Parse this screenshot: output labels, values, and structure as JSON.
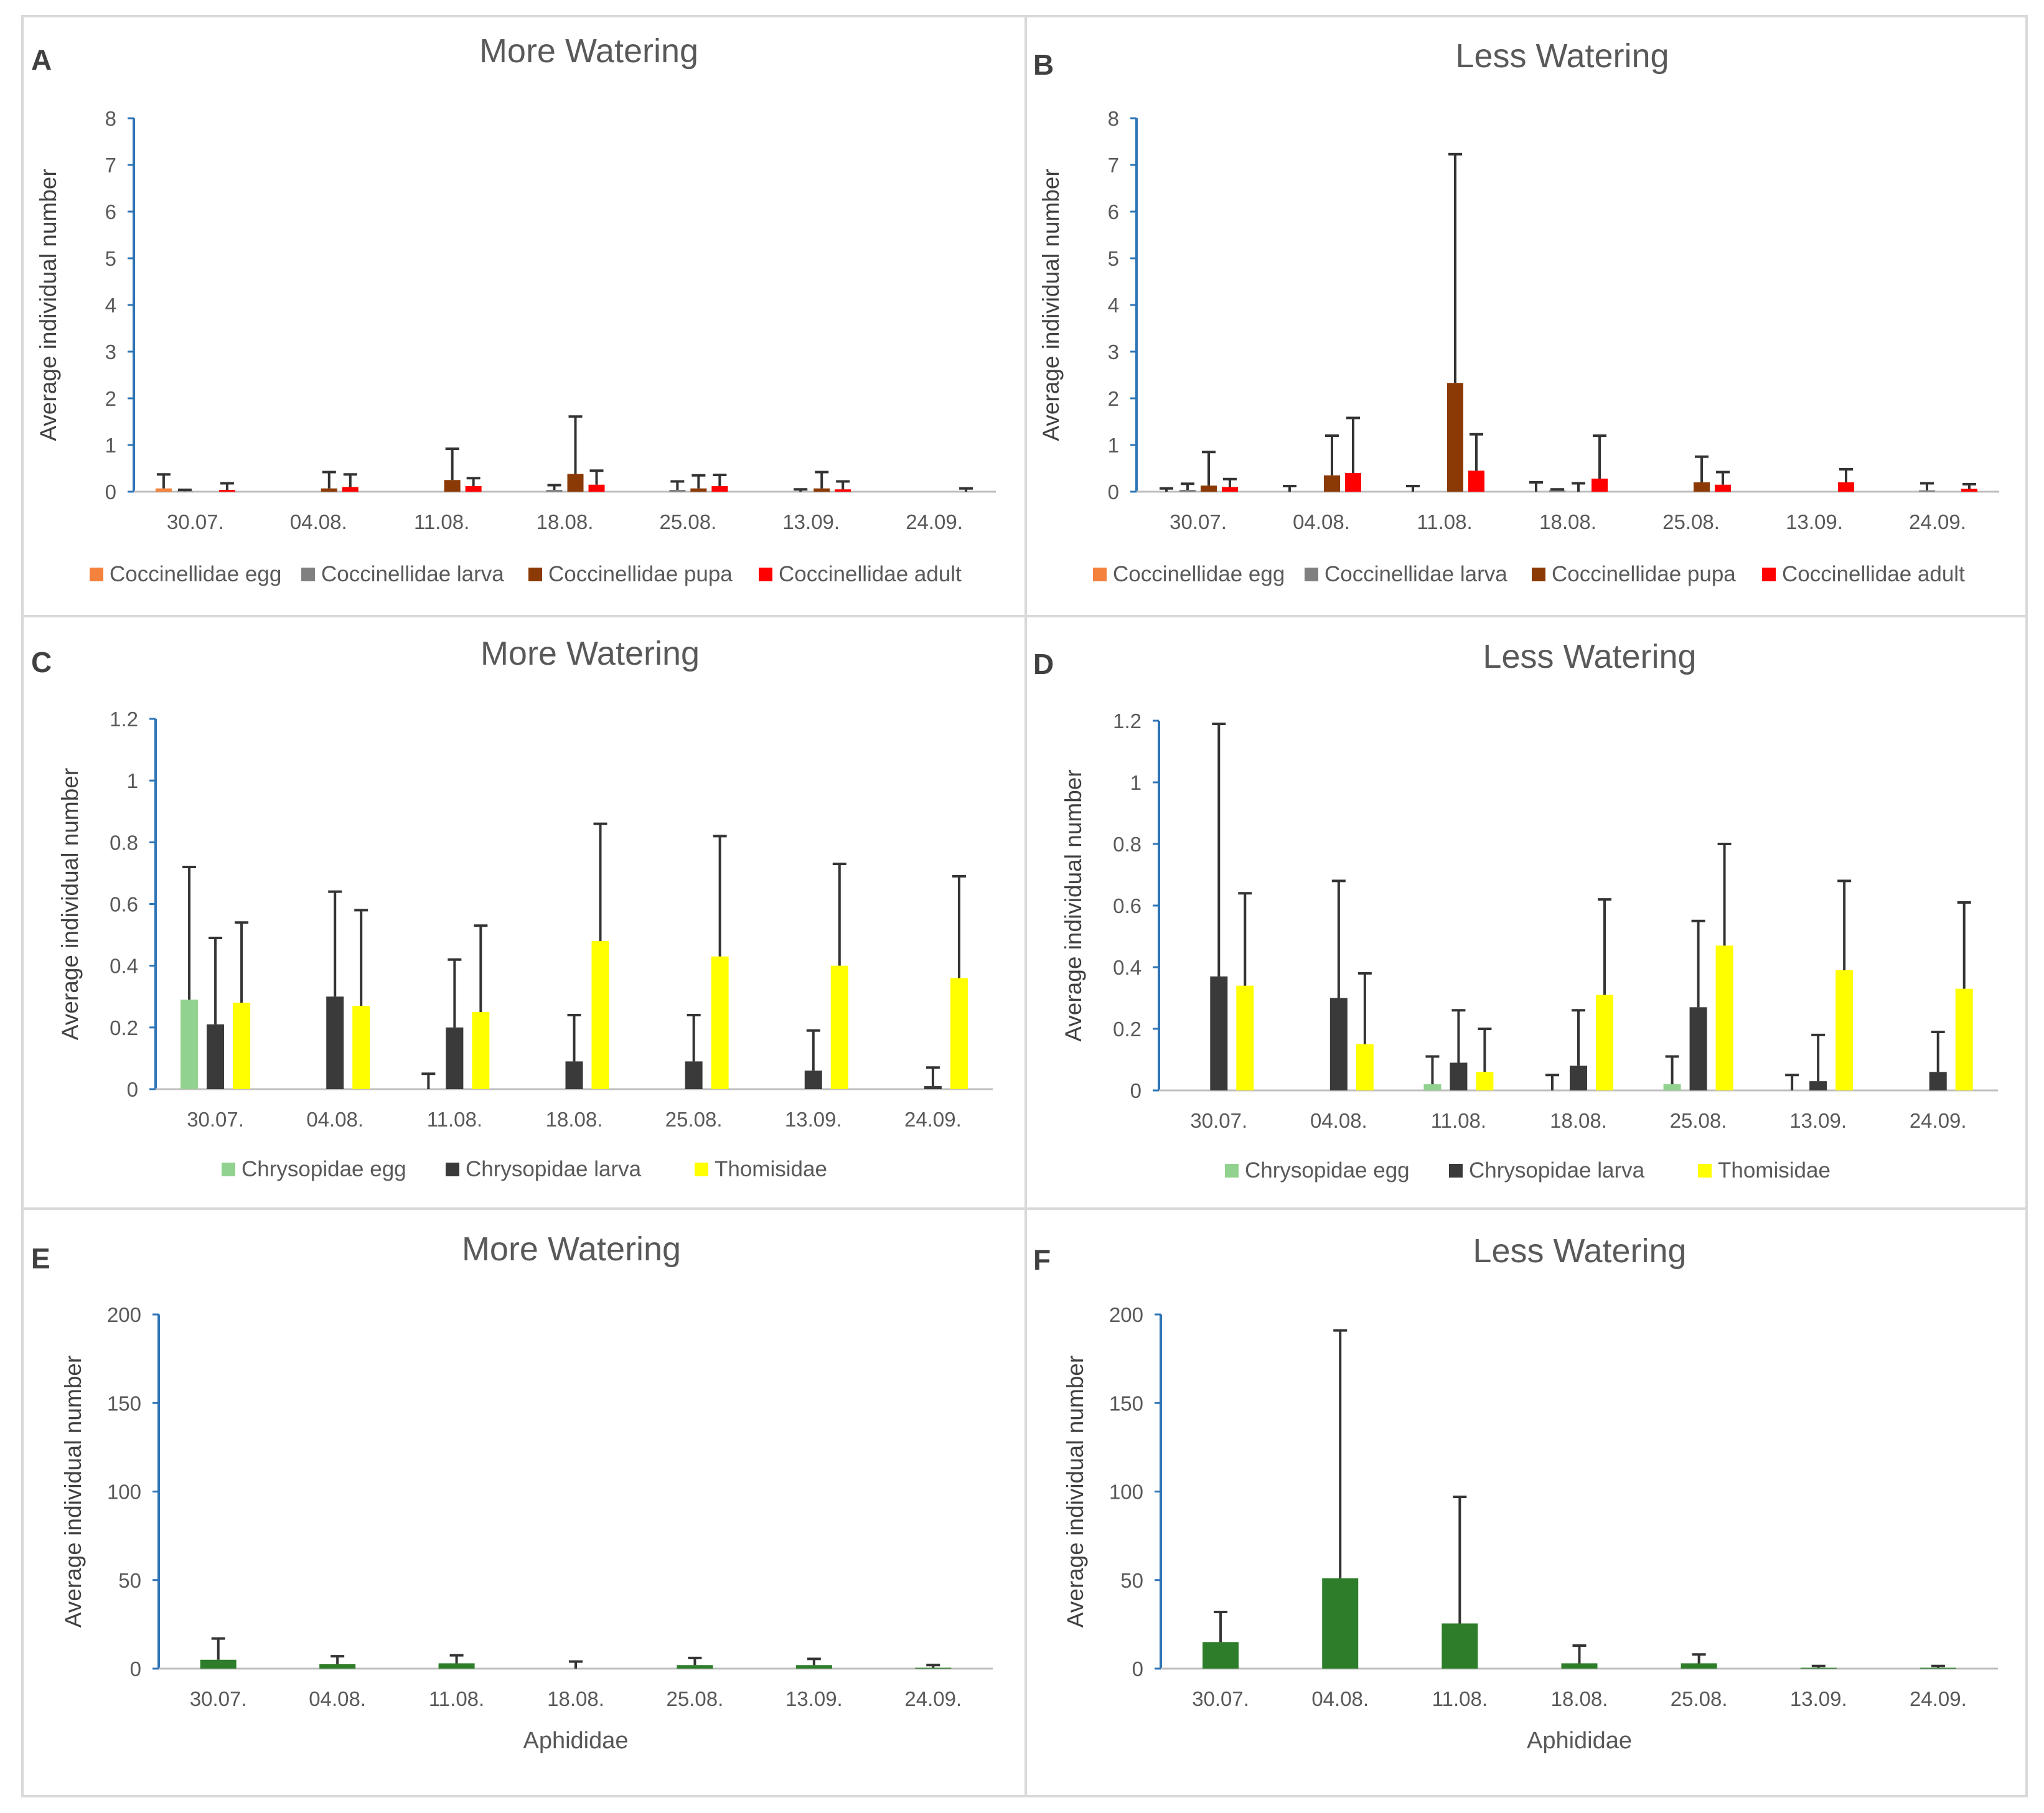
{
  "colors": {
    "coccinellidae_egg": "#f4813c",
    "coccinellidae_larva": "#808080",
    "coccinellidae_pupa": "#8b3a05",
    "coccinellidae_adult": "#ff0000",
    "chrysopidae_egg": "#92d28f",
    "chrysopidae_larva": "#3a3a3a",
    "thomisidae": "#ffff00",
    "aphididae": "#2e7d2a",
    "axis_blue": "#2e75b6"
  },
  "chart_data": [
    {
      "panel": "A",
      "type": "bar",
      "title": "More Watering",
      "ylabel": "Average individual number",
      "xlabel": "",
      "ylim": [
        0,
        8
      ],
      "yticks": [
        "0",
        "1",
        "2",
        "3",
        "4",
        "5",
        "6",
        "7",
        "8"
      ],
      "categories": [
        "30.07.",
        "04.08.",
        "11.08.",
        "18.08.",
        "25.08.",
        "13.09.",
        "24.09."
      ],
      "series": [
        {
          "name": "Coccinellidae egg",
          "color_key": "coccinellidae_egg",
          "values": [
            0.07,
            0,
            0,
            0,
            0,
            0,
            0
          ],
          "errors": [
            0.3,
            0,
            0,
            0,
            0,
            0,
            0
          ]
        },
        {
          "name": "Coccinellidae larva",
          "color_key": "coccinellidae_larva",
          "values": [
            0.01,
            0,
            0,
            0.04,
            0.04,
            0,
            0
          ],
          "errors": [
            0.03,
            0,
            0,
            0.1,
            0.18,
            0.05,
            0
          ]
        },
        {
          "name": "Coccinellidae pupa",
          "color_key": "coccinellidae_pupa",
          "values": [
            0,
            0.07,
            0.25,
            0.38,
            0.07,
            0.07,
            0
          ],
          "errors": [
            0,
            0.35,
            0.67,
            1.23,
            0.28,
            0.35,
            0
          ]
        },
        {
          "name": "Coccinellidae adult",
          "color_key": "coccinellidae_adult",
          "values": [
            0.04,
            0.1,
            0.12,
            0.15,
            0.12,
            0.05,
            0
          ],
          "errors": [
            0.14,
            0.27,
            0.17,
            0.3,
            0.24,
            0.17,
            0.07
          ]
        }
      ]
    },
    {
      "panel": "B",
      "type": "bar",
      "title": "Less Watering",
      "ylabel": "Average individual number",
      "xlabel": "",
      "ylim": [
        0,
        8
      ],
      "yticks": [
        "0",
        "1",
        "2",
        "3",
        "4",
        "5",
        "6",
        "7",
        "8"
      ],
      "categories": [
        "30.07.",
        "04.08.",
        "11.08.",
        "18.08.",
        "25.08.",
        "13.09.",
        "24.09."
      ],
      "series": [
        {
          "name": "Coccinellidae egg",
          "color_key": "coccinellidae_egg",
          "values": [
            0,
            0,
            0,
            0,
            0,
            0,
            0
          ],
          "errors": [
            0.07,
            0.12,
            0.12,
            0.2,
            0,
            0,
            0
          ]
        },
        {
          "name": "Coccinellidae larva",
          "color_key": "coccinellidae_larva",
          "values": [
            0.04,
            0,
            0,
            0.03,
            0,
            0,
            0.03
          ],
          "errors": [
            0.13,
            0,
            0,
            0.02,
            0,
            0,
            0.15
          ]
        },
        {
          "name": "Coccinellidae pupa",
          "color_key": "coccinellidae_pupa",
          "values": [
            0.13,
            0.35,
            2.33,
            0,
            0.2,
            0,
            0
          ],
          "errors": [
            0.72,
            0.85,
            4.9,
            0.18,
            0.55,
            0,
            0
          ]
        },
        {
          "name": "Coccinellidae adult",
          "color_key": "coccinellidae_adult",
          "values": [
            0.1,
            0.4,
            0.45,
            0.28,
            0.15,
            0.2,
            0.06
          ],
          "errors": [
            0.17,
            1.18,
            0.78,
            0.92,
            0.27,
            0.28,
            0.1
          ]
        }
      ]
    },
    {
      "panel": "C",
      "type": "bar",
      "title": "More Watering",
      "ylabel": "Average individual number",
      "xlabel": "",
      "ylim": [
        0,
        1.2
      ],
      "yticks": [
        "0",
        "0.2",
        "0.4",
        "0.6",
        "0.8",
        "1",
        "1.2"
      ],
      "categories": [
        "30.07.",
        "04.08.",
        "11.08.",
        "18.08.",
        "25.08.",
        "13.09.",
        "24.09."
      ],
      "series": [
        {
          "name": "Chrysopidae egg",
          "color_key": "chrysopidae_egg",
          "values": [
            0.29,
            0,
            0,
            0,
            0,
            0,
            0
          ],
          "errors": [
            0.43,
            0,
            0.05,
            0,
            0,
            0,
            0
          ]
        },
        {
          "name": "Chrysopidae larva",
          "color_key": "chrysopidae_larva",
          "values": [
            0.21,
            0.3,
            0.2,
            0.09,
            0.09,
            0.06,
            0.01
          ],
          "errors": [
            0.28,
            0.34,
            0.22,
            0.15,
            0.15,
            0.13,
            0.06
          ]
        },
        {
          "name": "Thomisidae",
          "color_key": "thomisidae",
          "values": [
            0.28,
            0.27,
            0.25,
            0.48,
            0.43,
            0.4,
            0.36
          ],
          "errors": [
            0.26,
            0.31,
            0.28,
            0.38,
            0.39,
            0.33,
            0.33
          ]
        }
      ]
    },
    {
      "panel": "D",
      "type": "bar",
      "title": "Less Watering",
      "ylabel": "Average individual number",
      "xlabel": "",
      "ylim": [
        0,
        1.2
      ],
      "yticks": [
        "0",
        "0.2",
        "0.4",
        "0.6",
        "0.8",
        "1",
        "1.2"
      ],
      "categories": [
        "30.07.",
        "04.08.",
        "11.08.",
        "18.08.",
        "25.08.",
        "13.09.",
        "24.09."
      ],
      "series": [
        {
          "name": "Chrysopidae egg",
          "color_key": "chrysopidae_egg",
          "values": [
            0,
            0,
            0.02,
            0,
            0.02,
            0,
            0
          ],
          "errors": [
            0,
            0,
            0.09,
            0.05,
            0.09,
            0.05,
            0
          ]
        },
        {
          "name": "Chrysopidae larva",
          "color_key": "chrysopidae_larva",
          "values": [
            0.37,
            0.3,
            0.09,
            0.08,
            0.27,
            0.03,
            0.06
          ],
          "errors": [
            0.82,
            0.38,
            0.17,
            0.18,
            0.28,
            0.15,
            0.13
          ]
        },
        {
          "name": "Thomisidae",
          "color_key": "thomisidae",
          "values": [
            0.34,
            0.15,
            0.06,
            0.31,
            0.47,
            0.39,
            0.33
          ],
          "errors": [
            0.3,
            0.23,
            0.14,
            0.31,
            0.33,
            0.29,
            0.28
          ]
        }
      ]
    },
    {
      "panel": "E",
      "type": "bar",
      "title": "More Watering",
      "ylabel": "Average individual number",
      "xlabel": "Aphididae",
      "ylim": [
        0,
        200
      ],
      "yticks": [
        "0",
        "50",
        "100",
        "150",
        "200"
      ],
      "categories": [
        "30.07.",
        "04.08.",
        "11.08.",
        "18.08.",
        "25.08.",
        "13.09.",
        "24.09."
      ],
      "series": [
        {
          "name": "Aphididae",
          "color_key": "aphididae",
          "values": [
            5,
            2.5,
            3,
            0,
            2,
            2,
            0.5
          ],
          "errors": [
            12,
            4.5,
            4.5,
            4,
            4,
            3.5,
            1.5
          ]
        }
      ]
    },
    {
      "panel": "F",
      "type": "bar",
      "title": "Less Watering",
      "ylabel": "Average individual number",
      "xlabel": "Aphididae",
      "ylim": [
        0,
        200
      ],
      "yticks": [
        "0",
        "50",
        "100",
        "150",
        "200"
      ],
      "categories": [
        "30.07.",
        "04.08.",
        "11.08.",
        "18.08.",
        "25.08.",
        "13.09.",
        "24.09."
      ],
      "series": [
        {
          "name": "Aphididae",
          "color_key": "aphididae",
          "values": [
            15,
            51,
            25.5,
            3,
            3,
            0.5,
            0.5
          ],
          "errors": [
            17,
            140,
            71.5,
            10,
            5,
            1,
            1
          ]
        }
      ]
    }
  ]
}
